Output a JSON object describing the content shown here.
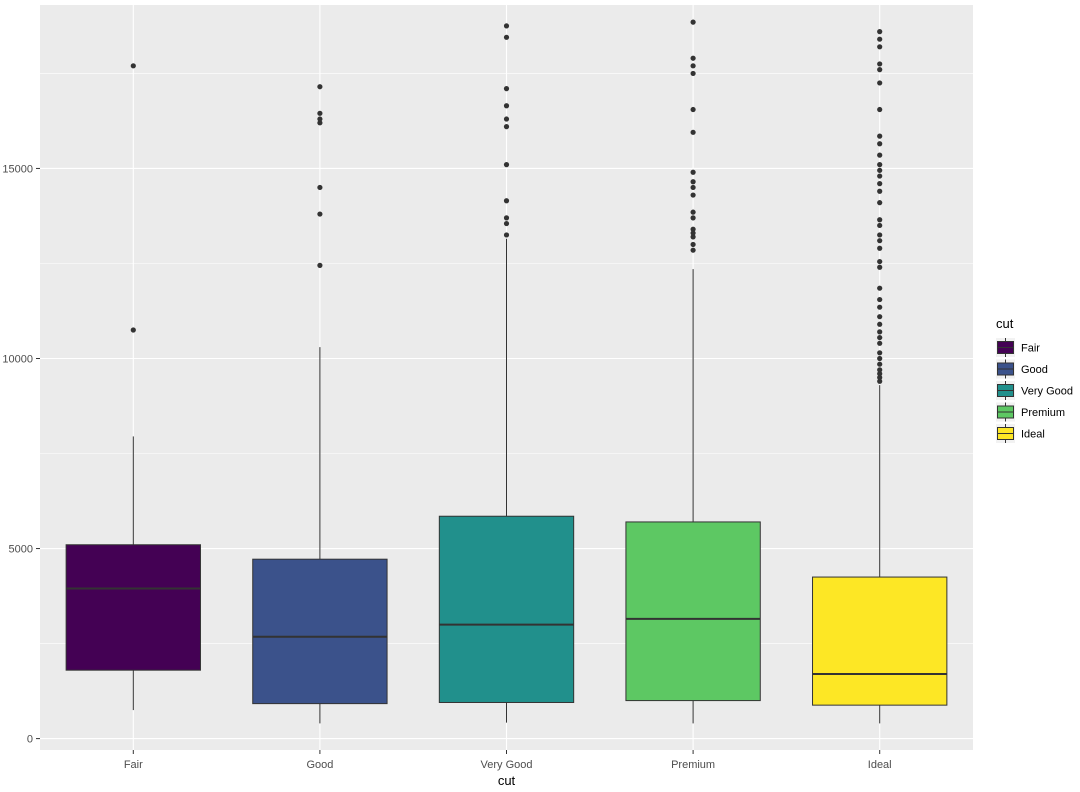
{
  "chart_data": {
    "type": "boxplot",
    "title": "",
    "xlabel": "cut",
    "ylabel": "",
    "ylim": [
      -300,
      19300
    ],
    "yticks": [
      0,
      5000,
      10000,
      15000
    ],
    "ytick_labels": [
      "0",
      "5000",
      "10000",
      "15000"
    ],
    "grid": true,
    "legend": {
      "title": "cut",
      "position": "right"
    },
    "categories": [
      "Fair",
      "Good",
      "Very Good",
      "Premium",
      "Ideal"
    ],
    "boxes": [
      {
        "category": "Fair",
        "color": "#440154",
        "whisker_low": 750,
        "q1": 1800,
        "median": 3950,
        "q3": 5100,
        "whisker_high": 7950,
        "outliers": [
          10750,
          17700
        ]
      },
      {
        "category": "Good",
        "color": "#3B528B",
        "whisker_low": 400,
        "q1": 920,
        "median": 2680,
        "q3": 4720,
        "whisker_high": 10300,
        "outliers": [
          12450,
          13800,
          14500,
          16200,
          16300,
          16450,
          17150
        ]
      },
      {
        "category": "Very Good",
        "color": "#21908C",
        "whisker_low": 420,
        "q1": 950,
        "median": 3000,
        "q3": 5850,
        "whisker_high": 13150,
        "outliers": [
          13250,
          13550,
          13700,
          14150,
          15100,
          16100,
          16300,
          16650,
          17100,
          18450,
          18750
        ]
      },
      {
        "category": "Premium",
        "color": "#5DC863",
        "whisker_low": 400,
        "q1": 1000,
        "median": 3150,
        "q3": 5700,
        "whisker_high": 12350,
        "outliers": [
          12850,
          13000,
          13200,
          13300,
          13400,
          13700,
          13850,
          14300,
          14500,
          14650,
          14900,
          15950,
          16550,
          17500,
          17700,
          17900,
          18850
        ]
      },
      {
        "category": "Ideal",
        "color": "#FDE725",
        "whisker_low": 400,
        "q1": 880,
        "median": 1700,
        "q3": 4250,
        "whisker_high": 9300,
        "outliers": [
          9400,
          9500,
          9600,
          9700,
          9850,
          10000,
          10150,
          10400,
          10550,
          10700,
          10900,
          11100,
          11350,
          11550,
          11850,
          12400,
          12550,
          12900,
          13100,
          13250,
          13500,
          13650,
          14100,
          14400,
          14600,
          14800,
          14950,
          15100,
          15350,
          15650,
          15850,
          16550,
          17250,
          17600,
          17750,
          18200,
          18400,
          18600
        ]
      }
    ]
  }
}
